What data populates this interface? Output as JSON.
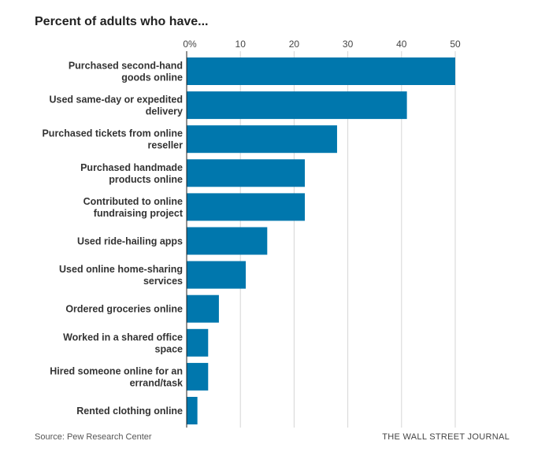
{
  "chart_data": {
    "type": "bar",
    "orientation": "horizontal",
    "title": "Percent of adults who have...",
    "categories": [
      "Purchased second-hand goods online",
      "Used same-day or expedited delivery",
      "Purchased tickets from online reseller",
      "Purchased handmade products online",
      "Contributed to online fundraising project",
      "Used ride-hailing apps",
      "Used online home-sharing services",
      "Ordered groceries online",
      "Worked in a shared office space",
      "Hired someone online for an errand/task",
      "Rented clothing online"
    ],
    "label_lines": [
      [
        "Purchased second-hand",
        "goods online"
      ],
      [
        "Used same-day or expedited",
        "delivery"
      ],
      [
        "Purchased tickets from online",
        "reseller"
      ],
      [
        "Purchased handmade",
        "products online"
      ],
      [
        "Contributed to online",
        "fundraising project"
      ],
      [
        "Used ride-hailing apps"
      ],
      [
        "Used online home-sharing",
        "services"
      ],
      [
        "Ordered groceries online"
      ],
      [
        "Worked in a shared office",
        "space"
      ],
      [
        "Hired someone online for an",
        "errand/task"
      ],
      [
        "Rented clothing online"
      ]
    ],
    "values": [
      50,
      41,
      28,
      22,
      22,
      15,
      11,
      6,
      4,
      4,
      2
    ],
    "xlim": [
      0,
      50
    ],
    "ticks": [
      0,
      10,
      20,
      30,
      40,
      50
    ],
    "tick_labels": [
      "0%",
      "10",
      "20",
      "30",
      "40",
      "50"
    ],
    "grid": true,
    "bar_color": "#0077ad"
  },
  "footer": {
    "source": "Source: Pew Research Center",
    "brand": "THE WALL STREET JOURNAL"
  }
}
